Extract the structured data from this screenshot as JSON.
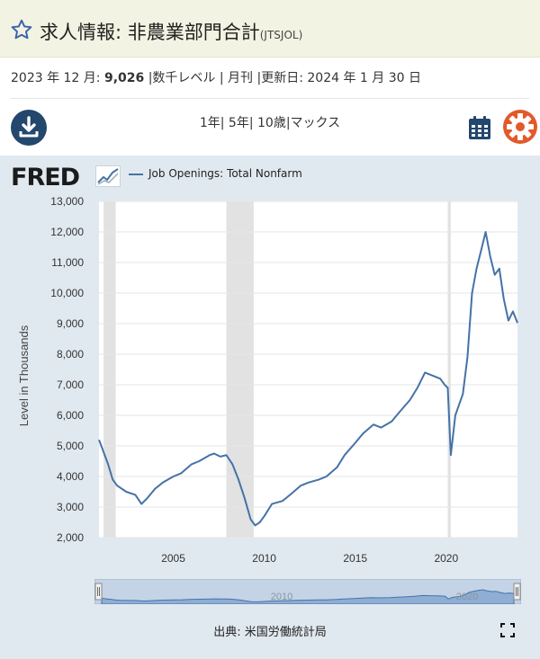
{
  "header": {
    "title": "求人情報: 非農業部門合計",
    "series_code": "(JTSJOL)"
  },
  "meta": {
    "period": "2023 年 12 月:",
    "value": "9,026",
    "rest": "|数千レベル | 月刊 |更新日: 2024 年 1 月 30 日"
  },
  "ranges": {
    "text": "1年| 5年| 10歳|マックス"
  },
  "fred": {
    "logo": "FRED"
  },
  "source": {
    "text": "出典: 米国労働統計局"
  },
  "colors": {
    "header_bg": "#f3f3e3",
    "panel_bg": "#e1e9f0",
    "line": "#4572a7",
    "recession": "#e2e2e2",
    "accent_orange": "#e25a2a",
    "accent_navy": "#23476d"
  },
  "icons": [
    "star-icon",
    "download-icon",
    "calendar-icon",
    "gear-icon",
    "expand-icon"
  ],
  "chart_data": {
    "type": "line",
    "title": "",
    "xlabel": "",
    "ylabel": "Level in Thousands",
    "ylim": [
      2000,
      13000
    ],
    "xlim": [
      "2000-12",
      "2023-12"
    ],
    "y_ticks": [
      "2,000",
      "3,000",
      "4,000",
      "5,000",
      "6,000",
      "7,000",
      "8,000",
      "9,000",
      "10,000",
      "11,000",
      "12,000",
      "13,000"
    ],
    "x_ticks": [
      "2005",
      "2010",
      "2015",
      "2020"
    ],
    "grid": true,
    "legend": "top-left",
    "recession_bands": [
      [
        "2001-03",
        "2001-11"
      ],
      [
        "2007-12",
        "2009-06"
      ],
      [
        "2020-02",
        "2020-04"
      ]
    ],
    "navigator_label": [
      "2010",
      "2020"
    ],
    "series": [
      {
        "name": "Job Openings: Total Nonfarm",
        "x": [
          "2000-12",
          "2001-03",
          "2001-06",
          "2001-09",
          "2001-12",
          "2002-06",
          "2002-12",
          "2003-04",
          "2003-08",
          "2004-01",
          "2004-06",
          "2005-01",
          "2005-06",
          "2006-01",
          "2006-06",
          "2007-01",
          "2007-04",
          "2007-08",
          "2007-12",
          "2008-04",
          "2008-08",
          "2008-12",
          "2009-04",
          "2009-07",
          "2009-10",
          "2010-01",
          "2010-06",
          "2011-01",
          "2011-06",
          "2012-01",
          "2012-06",
          "2013-01",
          "2013-06",
          "2014-01",
          "2014-06",
          "2015-01",
          "2015-06",
          "2016-01",
          "2016-06",
          "2017-01",
          "2017-06",
          "2018-01",
          "2018-06",
          "2018-11",
          "2019-04",
          "2019-09",
          "2019-12",
          "2020-02",
          "2020-04",
          "2020-07",
          "2020-12",
          "2021-03",
          "2021-06",
          "2021-09",
          "2021-12",
          "2022-03",
          "2022-06",
          "2022-09",
          "2022-12",
          "2023-03",
          "2023-06",
          "2023-09",
          "2023-12"
        ],
        "y": [
          5200,
          4800,
          4400,
          3900,
          3700,
          3500,
          3400,
          3100,
          3300,
          3600,
          3800,
          4000,
          4100,
          4400,
          4500,
          4700,
          4750,
          4650,
          4700,
          4400,
          3900,
          3300,
          2600,
          2400,
          2500,
          2700,
          3100,
          3200,
          3400,
          3700,
          3800,
          3900,
          4000,
          4300,
          4700,
          5100,
          5400,
          5700,
          5600,
          5800,
          6100,
          6500,
          6900,
          7400,
          7300,
          7200,
          7000,
          6900,
          4700,
          6000,
          6700,
          7900,
          10000,
          10800,
          11400,
          12000,
          11200,
          10600,
          10800,
          9800,
          9100,
          9400,
          9026
        ]
      }
    ]
  }
}
